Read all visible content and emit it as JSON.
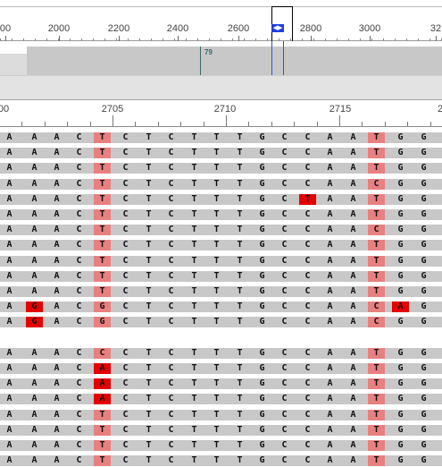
{
  "overview_ruler": {
    "labels": [
      "00",
      "2000",
      "2200",
      "2400",
      "2600",
      "2800",
      "3000",
      "32"
    ],
    "viewport_handle": "◀▶"
  },
  "coverage": {
    "marker_label": "79"
  },
  "position_ruler": {
    "labels": [
      "00",
      "2705",
      "2710",
      "2715",
      "2"
    ]
  },
  "colors": {
    "read_background": "#c8c8c8",
    "mismatch_light": "#e88080",
    "mismatch_dark": "#e40000",
    "viewport_blue": "#1f3fe0"
  },
  "reads": [
    {
      "bases": [
        "A",
        "A",
        "A",
        "C",
        "T",
        "C",
        "T",
        "C",
        "T",
        "T",
        "T",
        "G",
        "C",
        "C",
        "A",
        "A",
        "T",
        "G",
        "G"
      ],
      "hl": [
        0,
        0,
        0,
        0,
        1,
        0,
        0,
        0,
        0,
        0,
        0,
        0,
        0,
        0,
        0,
        0,
        1,
        0,
        0
      ]
    },
    {
      "bases": [
        "A",
        "A",
        "A",
        "C",
        "T",
        "C",
        "T",
        "C",
        "T",
        "T",
        "T",
        "G",
        "C",
        "C",
        "A",
        "A",
        "T",
        "G",
        "G"
      ],
      "hl": [
        0,
        0,
        0,
        0,
        1,
        0,
        0,
        0,
        0,
        0,
        0,
        0,
        0,
        0,
        0,
        0,
        1,
        0,
        0
      ]
    },
    {
      "bases": [
        "A",
        "A",
        "A",
        "C",
        "T",
        "C",
        "T",
        "C",
        "T",
        "T",
        "T",
        "G",
        "C",
        "C",
        "A",
        "A",
        "T",
        "G",
        "G"
      ],
      "hl": [
        0,
        0,
        0,
        0,
        1,
        0,
        0,
        0,
        0,
        0,
        0,
        0,
        0,
        0,
        0,
        0,
        1,
        0,
        0
      ]
    },
    {
      "bases": [
        "A",
        "A",
        "A",
        "C",
        "T",
        "C",
        "T",
        "C",
        "T",
        "T",
        "T",
        "G",
        "C",
        "C",
        "A",
        "A",
        "C",
        "G",
        "G"
      ],
      "hl": [
        0,
        0,
        0,
        0,
        1,
        0,
        0,
        0,
        0,
        0,
        0,
        0,
        0,
        0,
        0,
        0,
        1,
        0,
        0
      ]
    },
    {
      "bases": [
        "A",
        "A",
        "A",
        "C",
        "T",
        "C",
        "T",
        "C",
        "T",
        "T",
        "T",
        "G",
        "C",
        "T",
        "A",
        "A",
        "T",
        "G",
        "G"
      ],
      "hl": [
        0,
        0,
        0,
        0,
        1,
        0,
        0,
        0,
        0,
        0,
        0,
        0,
        0,
        2,
        0,
        0,
        1,
        0,
        0
      ]
    },
    {
      "bases": [
        "A",
        "A",
        "A",
        "C",
        "T",
        "C",
        "T",
        "C",
        "T",
        "T",
        "T",
        "G",
        "C",
        "C",
        "A",
        "A",
        "T",
        "G",
        "G"
      ],
      "hl": [
        0,
        0,
        0,
        0,
        1,
        0,
        0,
        0,
        0,
        0,
        0,
        0,
        0,
        0,
        0,
        0,
        1,
        0,
        0
      ]
    },
    {
      "bases": [
        "A",
        "A",
        "A",
        "C",
        "T",
        "C",
        "T",
        "C",
        "T",
        "T",
        "T",
        "G",
        "C",
        "C",
        "A",
        "A",
        "C",
        "G",
        "G"
      ],
      "hl": [
        0,
        0,
        0,
        0,
        1,
        0,
        0,
        0,
        0,
        0,
        0,
        0,
        0,
        0,
        0,
        0,
        1,
        0,
        0
      ]
    },
    {
      "bases": [
        "A",
        "A",
        "A",
        "C",
        "T",
        "C",
        "T",
        "C",
        "T",
        "T",
        "T",
        "G",
        "C",
        "C",
        "A",
        "A",
        "T",
        "G",
        "G"
      ],
      "hl": [
        0,
        0,
        0,
        0,
        1,
        0,
        0,
        0,
        0,
        0,
        0,
        0,
        0,
        0,
        0,
        0,
        1,
        0,
        0
      ]
    },
    {
      "bases": [
        "A",
        "A",
        "A",
        "C",
        "T",
        "C",
        "T",
        "C",
        "T",
        "T",
        "T",
        "G",
        "C",
        "C",
        "A",
        "A",
        "T",
        "G",
        "G"
      ],
      "hl": [
        0,
        0,
        0,
        0,
        1,
        0,
        0,
        0,
        0,
        0,
        0,
        0,
        0,
        0,
        0,
        0,
        1,
        0,
        0
      ]
    },
    {
      "bases": [
        "A",
        "A",
        "A",
        "C",
        "T",
        "C",
        "T",
        "C",
        "T",
        "T",
        "T",
        "G",
        "C",
        "C",
        "A",
        "A",
        "T",
        "G",
        "G"
      ],
      "hl": [
        0,
        0,
        0,
        0,
        1,
        0,
        0,
        0,
        0,
        0,
        0,
        0,
        0,
        0,
        0,
        0,
        1,
        0,
        0
      ]
    },
    {
      "bases": [
        "A",
        "A",
        "A",
        "C",
        "T",
        "C",
        "T",
        "C",
        "T",
        "T",
        "T",
        "G",
        "C",
        "C",
        "A",
        "A",
        "T",
        "G",
        "G"
      ],
      "hl": [
        0,
        0,
        0,
        0,
        1,
        0,
        0,
        0,
        0,
        0,
        0,
        0,
        0,
        0,
        0,
        0,
        1,
        0,
        0
      ]
    },
    {
      "bases": [
        "A",
        "G",
        "A",
        "C",
        "G",
        "C",
        "T",
        "C",
        "T",
        "T",
        "T",
        "G",
        "C",
        "C",
        "A",
        "A",
        "C",
        "A",
        "G"
      ],
      "hl": [
        0,
        2,
        0,
        0,
        1,
        0,
        0,
        0,
        0,
        0,
        0,
        0,
        0,
        0,
        0,
        0,
        1,
        2,
        0
      ]
    },
    {
      "bases": [
        "A",
        "G",
        "A",
        "C",
        "G",
        "C",
        "T",
        "C",
        "T",
        "T",
        "T",
        "G",
        "C",
        "C",
        "A",
        "A",
        "C",
        "G",
        "G"
      ],
      "hl": [
        0,
        2,
        0,
        0,
        1,
        0,
        0,
        0,
        0,
        0,
        0,
        0,
        0,
        0,
        0,
        0,
        1,
        0,
        0
      ]
    },
    null,
    {
      "bases": [
        "A",
        "A",
        "A",
        "C",
        "C",
        "C",
        "T",
        "C",
        "T",
        "T",
        "T",
        "G",
        "C",
        "C",
        "A",
        "A",
        "T",
        "G",
        "G"
      ],
      "hl": [
        0,
        0,
        0,
        0,
        1,
        0,
        0,
        0,
        0,
        0,
        0,
        0,
        0,
        0,
        0,
        0,
        1,
        0,
        0
      ]
    },
    {
      "bases": [
        "A",
        "A",
        "A",
        "C",
        "A",
        "C",
        "T",
        "C",
        "T",
        "T",
        "T",
        "G",
        "C",
        "C",
        "A",
        "A",
        "T",
        "G",
        "G"
      ],
      "hl": [
        0,
        0,
        0,
        0,
        2,
        0,
        0,
        0,
        0,
        0,
        0,
        0,
        0,
        0,
        0,
        0,
        1,
        0,
        0
      ]
    },
    {
      "bases": [
        "A",
        "A",
        "A",
        "C",
        "A",
        "C",
        "T",
        "C",
        "T",
        "T",
        "T",
        "G",
        "C",
        "C",
        "A",
        "A",
        "T",
        "G",
        "G"
      ],
      "hl": [
        0,
        0,
        0,
        0,
        2,
        0,
        0,
        0,
        0,
        0,
        0,
        0,
        0,
        0,
        0,
        0,
        1,
        0,
        0
      ]
    },
    {
      "bases": [
        "A",
        "A",
        "A",
        "C",
        "A",
        "C",
        "T",
        "C",
        "T",
        "T",
        "T",
        "G",
        "C",
        "C",
        "A",
        "A",
        "T",
        "G",
        "G"
      ],
      "hl": [
        0,
        0,
        0,
        0,
        2,
        0,
        0,
        0,
        0,
        0,
        0,
        0,
        0,
        0,
        0,
        0,
        1,
        0,
        0
      ]
    },
    {
      "bases": [
        "A",
        "A",
        "A",
        "C",
        "T",
        "C",
        "T",
        "C",
        "T",
        "T",
        "T",
        "G",
        "C",
        "C",
        "A",
        "A",
        "T",
        "G",
        "G"
      ],
      "hl": [
        0,
        0,
        0,
        0,
        1,
        0,
        0,
        0,
        0,
        0,
        0,
        0,
        0,
        0,
        0,
        0,
        1,
        0,
        0
      ]
    },
    {
      "bases": [
        "A",
        "A",
        "A",
        "C",
        "T",
        "C",
        "T",
        "C",
        "T",
        "T",
        "T",
        "G",
        "C",
        "C",
        "A",
        "A",
        "T",
        "G",
        "G"
      ],
      "hl": [
        0,
        0,
        0,
        0,
        1,
        0,
        0,
        0,
        0,
        0,
        0,
        0,
        0,
        0,
        0,
        0,
        1,
        0,
        0
      ]
    },
    {
      "bases": [
        "A",
        "A",
        "A",
        "C",
        "T",
        "C",
        "T",
        "C",
        "T",
        "T",
        "T",
        "G",
        "C",
        "C",
        "A",
        "A",
        "T",
        "G",
        "G"
      ],
      "hl": [
        0,
        0,
        0,
        0,
        1,
        0,
        0,
        0,
        0,
        0,
        0,
        0,
        0,
        0,
        0,
        0,
        1,
        0,
        0
      ]
    },
    {
      "bases": [
        "A",
        "A",
        "A",
        "C",
        "T",
        "C",
        "T",
        "C",
        "T",
        "T",
        "T",
        "G",
        "C",
        "C",
        "A",
        "A",
        "T",
        "G",
        "G"
      ],
      "hl": [
        0,
        0,
        0,
        0,
        1,
        0,
        0,
        0,
        0,
        0,
        0,
        0,
        0,
        0,
        0,
        0,
        1,
        0,
        0
      ]
    }
  ]
}
